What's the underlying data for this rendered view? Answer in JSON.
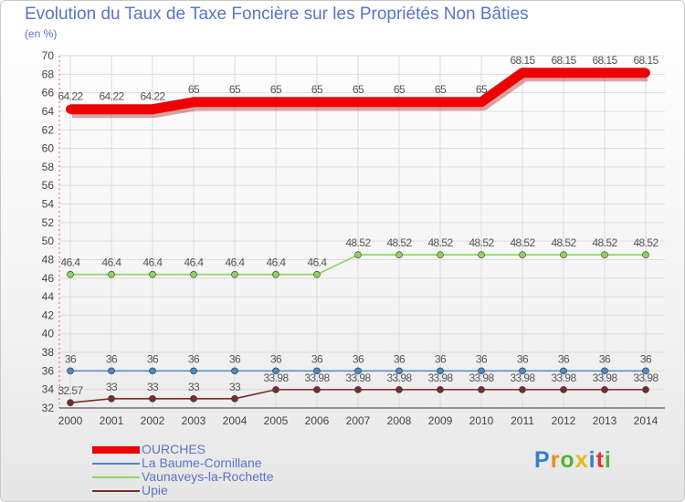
{
  "chart_data": {
    "type": "line",
    "title": "Evolution du Taux de Taxe Foncière sur les Propriétés Non Bâties",
    "ylabel": "(en %)",
    "xlabel": "",
    "categories": [
      "2000",
      "2001",
      "2002",
      "2003",
      "2004",
      "2005",
      "2006",
      "2007",
      "2008",
      "2009",
      "2010",
      "2011",
      "2012",
      "2013",
      "2014"
    ],
    "ylim": [
      32,
      70
    ],
    "yticks": [
      32,
      34,
      36,
      38,
      40,
      42,
      44,
      46,
      48,
      50,
      52,
      54,
      56,
      58,
      60,
      62,
      64,
      66,
      68,
      70
    ],
    "series": [
      {
        "name": "OURCHES",
        "color": "#ee0000",
        "values": [
          64.22,
          64.22,
          64.22,
          65,
          65,
          65,
          65,
          65,
          65,
          65,
          65,
          68.15,
          68.15,
          68.15,
          68.15
        ],
        "labels": [
          "64.22",
          "64.22",
          "64.22",
          "65",
          "65",
          "65",
          "65",
          "65",
          "65",
          "65",
          "65",
          "68.15",
          "68.15",
          "68.15",
          "68.15"
        ]
      },
      {
        "name": "La Baume-Cornillane",
        "color": "#4f86c6",
        "values": [
          36,
          36,
          36,
          36,
          36,
          36,
          36,
          36,
          36,
          36,
          36,
          36,
          36,
          36,
          36
        ],
        "labels": [
          "36",
          "36",
          "36",
          "36",
          "36",
          "36",
          "36",
          "36",
          "36",
          "36",
          "36",
          "36",
          "36",
          "36",
          "36"
        ]
      },
      {
        "name": "Vaunaveys-la-Rochette",
        "color": "#8ed35c",
        "values": [
          46.4,
          46.4,
          46.4,
          46.4,
          46.4,
          46.4,
          46.4,
          48.52,
          48.52,
          48.52,
          48.52,
          48.52,
          48.52,
          48.52,
          48.52
        ],
        "labels": [
          "46.4",
          "46.4",
          "46.4",
          "46.4",
          "46.4",
          "46.4",
          "46.4",
          "48.52",
          "48.52",
          "48.52",
          "48.52",
          "48.52",
          "48.52",
          "48.52",
          "48.52"
        ]
      },
      {
        "name": "Upie",
        "color": "#7a2a2a",
        "values": [
          32.57,
          33,
          33,
          33,
          33,
          33.98,
          33.98,
          33.98,
          33.98,
          33.98,
          33.98,
          33.98,
          33.98,
          33.98,
          33.98
        ],
        "labels": [
          "32.57",
          "33",
          "33",
          "33",
          "33",
          "33.98",
          "33.98",
          "33.98",
          "33.98",
          "33.98",
          "33.98",
          "33.98",
          "33.98",
          "33.98",
          "33.98"
        ]
      }
    ],
    "legend_position": "bottom-left",
    "grid": true
  },
  "logo": {
    "letters": [
      "P",
      "r",
      "o",
      "x",
      "i",
      "t",
      "i"
    ],
    "colors": [
      "#2f7fd1",
      "#f08a1d",
      "#55b233",
      "#e8b81a",
      "#2f7fd1",
      "#e3342f",
      "#55b233"
    ]
  }
}
